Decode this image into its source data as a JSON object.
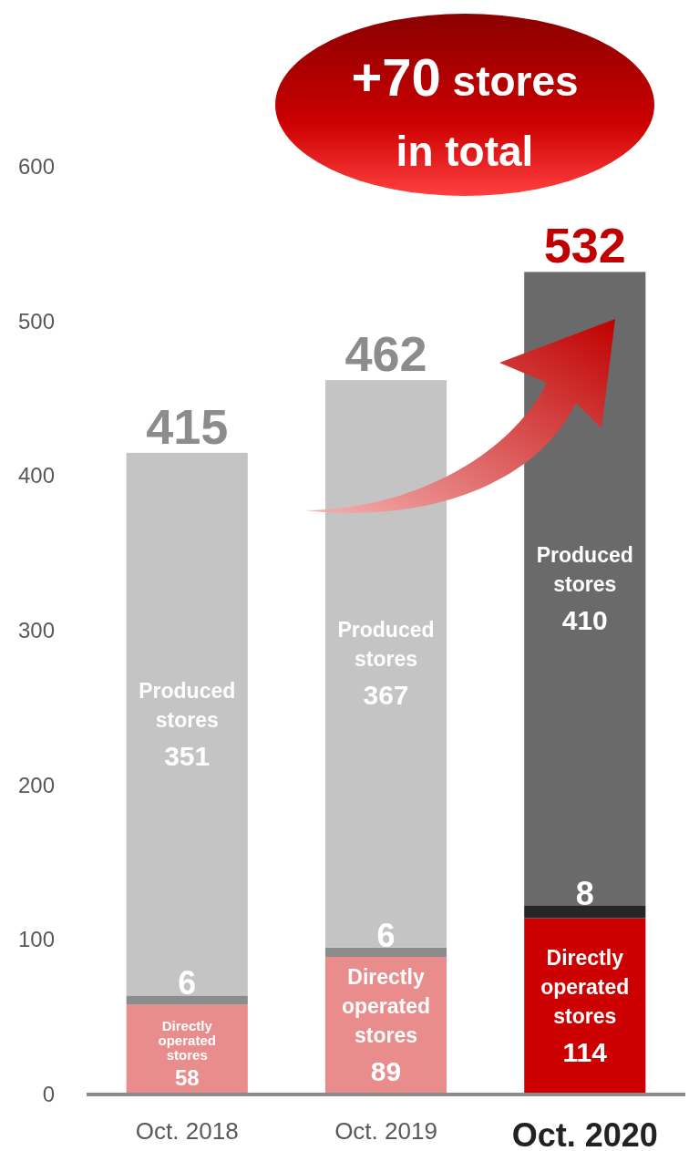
{
  "chart_data": {
    "type": "bar",
    "stacked": true,
    "categories": [
      "Oct. 2018",
      "Oct. 2019",
      "Oct. 2020"
    ],
    "series": [
      {
        "name": "Directly operated stores",
        "colors": [
          "#e98c8c",
          "#e98c8c",
          "#cc0000"
        ],
        "values": [
          58,
          89,
          114
        ]
      },
      {
        "colors": [
          "#8c8c8c",
          "#8c8c8c",
          "#262626"
        ],
        "values": [
          6,
          6,
          8
        ]
      },
      {
        "name": "Produced stores",
        "colors": [
          "#c4c4c4",
          "#c4c4c4",
          "#6a6a6a"
        ],
        "values": [
          351,
          367,
          410
        ]
      }
    ],
    "totals": [
      "415",
      "462",
      "532"
    ],
    "data_labels": true,
    "ylim": [
      0,
      600
    ],
    "yticks": [
      0,
      100,
      200,
      300,
      400,
      500,
      600
    ],
    "grid": false,
    "annotations": [
      "+70 stores in total"
    ]
  }
}
